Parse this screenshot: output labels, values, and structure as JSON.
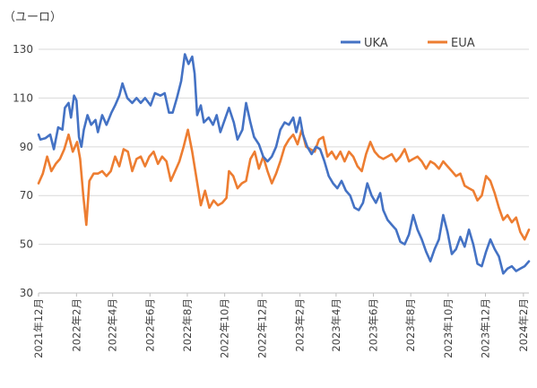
{
  "chart_data": {
    "type": "line",
    "unit_label": "（ユーロ）",
    "ylim": [
      30,
      137
    ],
    "y_ticks": [
      30,
      50,
      70,
      90,
      110,
      130
    ],
    "x_range": [
      "2021-12-01",
      "2024-02-10"
    ],
    "x_ticks": [
      {
        "date": "2021-12-01",
        "label": "2021年12月"
      },
      {
        "date": "2022-02-01",
        "label": "2022年2月"
      },
      {
        "date": "2022-04-01",
        "label": "2022年4月"
      },
      {
        "date": "2022-06-01",
        "label": "2022年6月"
      },
      {
        "date": "2022-08-01",
        "label": "2022年8月"
      },
      {
        "date": "2022-10-01",
        "label": "2022年10月"
      },
      {
        "date": "2022-12-01",
        "label": "2022年12月"
      },
      {
        "date": "2023-02-01",
        "label": "2023年2月"
      },
      {
        "date": "2023-04-01",
        "label": "2023年4月"
      },
      {
        "date": "2023-06-01",
        "label": "2023年6月"
      },
      {
        "date": "2023-08-01",
        "label": "2023年8月"
      },
      {
        "date": "2023-10-01",
        "label": "2023年10月"
      },
      {
        "date": "2023-12-01",
        "label": "2023年12月"
      },
      {
        "date": "2024-02-01",
        "label": "2024年2月"
      }
    ],
    "grid": "horizontal",
    "legend_position": "top-right",
    "series": [
      {
        "name": "UKA",
        "color": "#4472c4",
        "points": [
          [
            "2021-12-01",
            95
          ],
          [
            "2021-12-04",
            93
          ],
          [
            "2021-12-12",
            93.5
          ],
          [
            "2021-12-20",
            95
          ],
          [
            "2021-12-26",
            89
          ],
          [
            "2022-01-02",
            98
          ],
          [
            "2022-01-09",
            97
          ],
          [
            "2022-01-13",
            106
          ],
          [
            "2022-01-19",
            108
          ],
          [
            "2022-01-23",
            102
          ],
          [
            "2022-01-28",
            111
          ],
          [
            "2022-02-01",
            109
          ],
          [
            "2022-02-05",
            94
          ],
          [
            "2022-02-09",
            90
          ],
          [
            "2022-02-13",
            97
          ],
          [
            "2022-02-19",
            103
          ],
          [
            "2022-02-25",
            99
          ],
          [
            "2022-03-04",
            101
          ],
          [
            "2022-03-08",
            96
          ],
          [
            "2022-03-15",
            103
          ],
          [
            "2022-03-22",
            99
          ],
          [
            "2022-03-30",
            104
          ],
          [
            "2022-04-05",
            107
          ],
          [
            "2022-04-12",
            111
          ],
          [
            "2022-04-17",
            116
          ],
          [
            "2022-04-25",
            110
          ],
          [
            "2022-05-03",
            108
          ],
          [
            "2022-05-10",
            110
          ],
          [
            "2022-05-17",
            108
          ],
          [
            "2022-05-24",
            110
          ],
          [
            "2022-06-02",
            107
          ],
          [
            "2022-06-09",
            112
          ],
          [
            "2022-06-18",
            111
          ],
          [
            "2022-06-25",
            112
          ],
          [
            "2022-07-02",
            104
          ],
          [
            "2022-07-08",
            104
          ],
          [
            "2022-07-15",
            110
          ],
          [
            "2022-07-22",
            117
          ],
          [
            "2022-07-28",
            128
          ],
          [
            "2022-08-03",
            124
          ],
          [
            "2022-08-09",
            127
          ],
          [
            "2022-08-13",
            120
          ],
          [
            "2022-08-17",
            103
          ],
          [
            "2022-08-23",
            107
          ],
          [
            "2022-08-28",
            100
          ],
          [
            "2022-09-05",
            102
          ],
          [
            "2022-09-12",
            99
          ],
          [
            "2022-09-18",
            103
          ],
          [
            "2022-09-24",
            96
          ],
          [
            "2022-10-01",
            101
          ],
          [
            "2022-10-08",
            106
          ],
          [
            "2022-10-16",
            100
          ],
          [
            "2022-10-22",
            93
          ],
          [
            "2022-10-30",
            97
          ],
          [
            "2022-11-05",
            108
          ],
          [
            "2022-11-12",
            100
          ],
          [
            "2022-11-18",
            94
          ],
          [
            "2022-11-26",
            91
          ],
          [
            "2022-12-03",
            86
          ],
          [
            "2022-12-10",
            84
          ],
          [
            "2022-12-17",
            86
          ],
          [
            "2022-12-24",
            90
          ],
          [
            "2022-12-31",
            97
          ],
          [
            "2023-01-07",
            100
          ],
          [
            "2023-01-14",
            99
          ],
          [
            "2023-01-21",
            102
          ],
          [
            "2023-01-26",
            96
          ],
          [
            "2023-02-01",
            102
          ],
          [
            "2023-02-06",
            95
          ],
          [
            "2023-02-13",
            90
          ],
          [
            "2023-02-20",
            87
          ],
          [
            "2023-02-27",
            90
          ],
          [
            "2023-03-06",
            89
          ],
          [
            "2023-03-13",
            84
          ],
          [
            "2023-03-20",
            78
          ],
          [
            "2023-03-27",
            75
          ],
          [
            "2023-04-03",
            73
          ],
          [
            "2023-04-10",
            76
          ],
          [
            "2023-04-17",
            72
          ],
          [
            "2023-04-24",
            70
          ],
          [
            "2023-05-01",
            65
          ],
          [
            "2023-05-08",
            64
          ],
          [
            "2023-05-15",
            67
          ],
          [
            "2023-05-22",
            75
          ],
          [
            "2023-05-29",
            70
          ],
          [
            "2023-06-05",
            67
          ],
          [
            "2023-06-12",
            71
          ],
          [
            "2023-06-17",
            64
          ],
          [
            "2023-06-24",
            60
          ],
          [
            "2023-07-01",
            58
          ],
          [
            "2023-07-08",
            56
          ],
          [
            "2023-07-15",
            51
          ],
          [
            "2023-07-22",
            50
          ],
          [
            "2023-07-29",
            54
          ],
          [
            "2023-08-05",
            62
          ],
          [
            "2023-08-12",
            56
          ],
          [
            "2023-08-19",
            52
          ],
          [
            "2023-08-26",
            47
          ],
          [
            "2023-09-02",
            43
          ],
          [
            "2023-09-09",
            48
          ],
          [
            "2023-09-16",
            52
          ],
          [
            "2023-09-23",
            62
          ],
          [
            "2023-09-30",
            55
          ],
          [
            "2023-10-07",
            46
          ],
          [
            "2023-10-14",
            48
          ],
          [
            "2023-10-21",
            53
          ],
          [
            "2023-10-28",
            49
          ],
          [
            "2023-11-04",
            56
          ],
          [
            "2023-11-11",
            50
          ],
          [
            "2023-11-18",
            42
          ],
          [
            "2023-11-25",
            41
          ],
          [
            "2023-12-02",
            47
          ],
          [
            "2023-12-09",
            52
          ],
          [
            "2023-12-16",
            48
          ],
          [
            "2023-12-23",
            45
          ],
          [
            "2023-12-30",
            38
          ],
          [
            "2024-01-06",
            40
          ],
          [
            "2024-01-13",
            41
          ],
          [
            "2024-01-20",
            39
          ],
          [
            "2024-01-27",
            40
          ],
          [
            "2024-02-03",
            41
          ],
          [
            "2024-02-10",
            43
          ]
        ]
      },
      {
        "name": "EUA",
        "color": "#ed7d31",
        "points": [
          [
            "2021-12-01",
            75
          ],
          [
            "2021-12-08",
            79
          ],
          [
            "2021-12-15",
            86
          ],
          [
            "2021-12-22",
            80
          ],
          [
            "2021-12-29",
            83
          ],
          [
            "2022-01-05",
            85
          ],
          [
            "2022-01-12",
            89
          ],
          [
            "2022-01-19",
            95
          ],
          [
            "2022-01-26",
            88
          ],
          [
            "2022-02-02",
            92
          ],
          [
            "2022-02-07",
            85
          ],
          [
            "2022-02-12",
            70
          ],
          [
            "2022-02-17",
            58
          ],
          [
            "2022-02-22",
            76
          ],
          [
            "2022-03-01",
            79
          ],
          [
            "2022-03-08",
            79
          ],
          [
            "2022-03-15",
            80
          ],
          [
            "2022-03-22",
            78
          ],
          [
            "2022-03-29",
            80
          ],
          [
            "2022-04-05",
            86
          ],
          [
            "2022-04-12",
            82
          ],
          [
            "2022-04-19",
            89
          ],
          [
            "2022-04-26",
            88
          ],
          [
            "2022-05-03",
            80
          ],
          [
            "2022-05-10",
            85
          ],
          [
            "2022-05-17",
            86
          ],
          [
            "2022-05-24",
            82
          ],
          [
            "2022-05-31",
            86
          ],
          [
            "2022-06-07",
            88
          ],
          [
            "2022-06-14",
            83
          ],
          [
            "2022-06-21",
            86
          ],
          [
            "2022-06-28",
            84
          ],
          [
            "2022-07-05",
            76
          ],
          [
            "2022-07-12",
            80
          ],
          [
            "2022-07-19",
            84
          ],
          [
            "2022-07-26",
            90
          ],
          [
            "2022-08-02",
            97
          ],
          [
            "2022-08-09",
            88
          ],
          [
            "2022-08-16",
            77
          ],
          [
            "2022-08-23",
            66
          ],
          [
            "2022-08-30",
            72
          ],
          [
            "2022-09-06",
            65
          ],
          [
            "2022-09-13",
            68
          ],
          [
            "2022-09-20",
            66
          ],
          [
            "2022-09-27",
            67
          ],
          [
            "2022-10-04",
            69
          ],
          [
            "2022-10-08",
            80
          ],
          [
            "2022-10-15",
            78
          ],
          [
            "2022-10-22",
            73
          ],
          [
            "2022-10-29",
            75
          ],
          [
            "2022-11-05",
            76
          ],
          [
            "2022-11-12",
            85
          ],
          [
            "2022-11-19",
            88
          ],
          [
            "2022-11-26",
            81
          ],
          [
            "2022-12-03",
            86
          ],
          [
            "2022-12-10",
            80
          ],
          [
            "2022-12-17",
            75
          ],
          [
            "2022-12-24",
            79
          ],
          [
            "2022-12-31",
            84
          ],
          [
            "2023-01-07",
            90
          ],
          [
            "2023-01-14",
            93
          ],
          [
            "2023-01-21",
            95
          ],
          [
            "2023-01-28",
            91
          ],
          [
            "2023-02-04",
            97
          ],
          [
            "2023-02-11",
            90
          ],
          [
            "2023-02-18",
            89
          ],
          [
            "2023-02-25",
            88
          ],
          [
            "2023-03-04",
            93
          ],
          [
            "2023-03-11",
            94
          ],
          [
            "2023-03-18",
            86
          ],
          [
            "2023-03-25",
            88
          ],
          [
            "2023-04-01",
            85
          ],
          [
            "2023-04-08",
            88
          ],
          [
            "2023-04-15",
            84
          ],
          [
            "2023-04-22",
            88
          ],
          [
            "2023-04-29",
            86
          ],
          [
            "2023-05-06",
            82
          ],
          [
            "2023-05-13",
            80
          ],
          [
            "2023-05-20",
            87
          ],
          [
            "2023-05-27",
            92
          ],
          [
            "2023-06-03",
            88
          ],
          [
            "2023-06-10",
            86
          ],
          [
            "2023-06-17",
            85
          ],
          [
            "2023-06-24",
            86
          ],
          [
            "2023-07-01",
            87
          ],
          [
            "2023-07-08",
            84
          ],
          [
            "2023-07-15",
            86
          ],
          [
            "2023-07-22",
            89
          ],
          [
            "2023-07-29",
            84
          ],
          [
            "2023-08-05",
            85
          ],
          [
            "2023-08-12",
            86
          ],
          [
            "2023-08-19",
            84
          ],
          [
            "2023-08-26",
            81
          ],
          [
            "2023-09-02",
            84
          ],
          [
            "2023-09-09",
            83
          ],
          [
            "2023-09-16",
            81
          ],
          [
            "2023-09-23",
            84
          ],
          [
            "2023-09-30",
            82
          ],
          [
            "2023-10-07",
            80
          ],
          [
            "2023-10-14",
            78
          ],
          [
            "2023-10-21",
            79
          ],
          [
            "2023-10-28",
            74
          ],
          [
            "2023-11-04",
            73
          ],
          [
            "2023-11-11",
            72
          ],
          [
            "2023-11-18",
            68
          ],
          [
            "2023-11-25",
            70
          ],
          [
            "2023-12-02",
            78
          ],
          [
            "2023-12-09",
            76
          ],
          [
            "2023-12-16",
            71
          ],
          [
            "2023-12-23",
            65
          ],
          [
            "2023-12-30",
            60
          ],
          [
            "2024-01-06",
            62
          ],
          [
            "2024-01-13",
            59
          ],
          [
            "2024-01-20",
            61
          ],
          [
            "2024-01-27",
            55
          ],
          [
            "2024-02-03",
            52
          ],
          [
            "2024-02-10",
            56
          ]
        ]
      }
    ]
  }
}
